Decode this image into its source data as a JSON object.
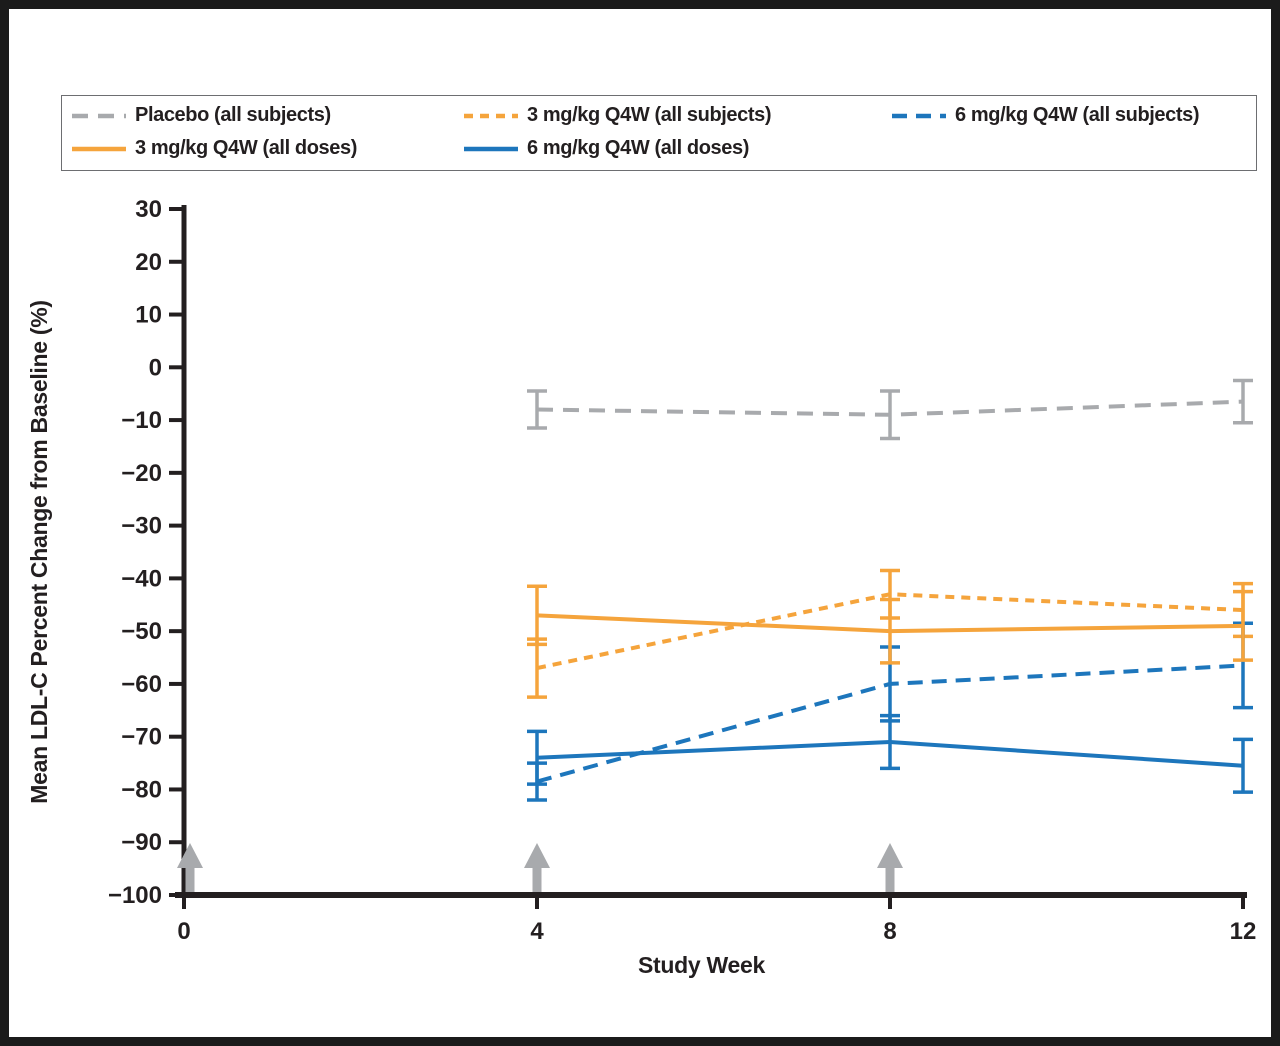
{
  "legend": {
    "items": [
      {
        "label": "Placebo (all subjects)",
        "series_index": 0
      },
      {
        "label": "3 mg/kg Q4W (all subjects)",
        "series_index": 1
      },
      {
        "label": "6 mg/kg Q4W (all subjects)",
        "series_index": 2
      },
      {
        "label": "3 mg/kg Q4W (all doses)",
        "series_index": 3
      },
      {
        "label": "6 mg/kg Q4W (all doses)",
        "series_index": 4
      }
    ]
  },
  "chart_data": {
    "type": "line",
    "title": "",
    "xlabel": "Study Week",
    "ylabel": "Mean LDL-C Percent Change from Baseline (%)",
    "xlim": [
      0,
      12
    ],
    "ylim": [
      -100,
      30
    ],
    "x_ticks": [
      0,
      4,
      8,
      12
    ],
    "y_ticks": [
      30,
      20,
      10,
      0,
      -10,
      -20,
      -30,
      -40,
      -50,
      -60,
      -70,
      -80,
      -90,
      -100
    ],
    "grid": "off",
    "legend_position": "top",
    "dose_arrow_weeks": [
      0,
      4,
      8
    ],
    "dose_arrow_color": "#A8AAAD",
    "axis_color": "#231f20",
    "series": [
      {
        "name": "Placebo (all subjects)",
        "color": "#A8AAAD",
        "style": "dashed",
        "dash": "16 10",
        "width": 4,
        "x": [
          4,
          8,
          12
        ],
        "y": [
          -8,
          -9,
          -6.5
        ],
        "err": [
          3.5,
          4.5,
          4
        ]
      },
      {
        "name": "3 mg/kg Q4W (all subjects)",
        "color": "#F5A43C",
        "style": "dashed",
        "dash": "9 7",
        "width": 4,
        "x": [
          4,
          8,
          12
        ],
        "y": [
          -57,
          -43,
          -46
        ],
        "err": [
          5.5,
          4.5,
          5
        ]
      },
      {
        "name": "6 mg/kg Q4W (all subjects)",
        "color": "#1D76BC",
        "style": "dashed",
        "dash": "15 9",
        "width": 4,
        "x": [
          4,
          8,
          12
        ],
        "y": [
          -78.5,
          -60,
          -56.5
        ],
        "err": [
          3.5,
          7,
          8
        ]
      },
      {
        "name": "3 mg/kg Q4W (all doses)",
        "color": "#F5A43C",
        "style": "solid",
        "dash": "",
        "width": 4,
        "x": [
          4,
          8,
          12
        ],
        "y": [
          -47,
          -50,
          -49
        ],
        "err": [
          5.5,
          6,
          6.5
        ]
      },
      {
        "name": "6 mg/kg Q4W (all doses)",
        "color": "#1D76BC",
        "style": "solid",
        "dash": "",
        "width": 4,
        "x": [
          4,
          8,
          12
        ],
        "y": [
          -74,
          -71,
          -75.5
        ],
        "err": [
          5,
          5,
          5
        ]
      }
    ]
  }
}
